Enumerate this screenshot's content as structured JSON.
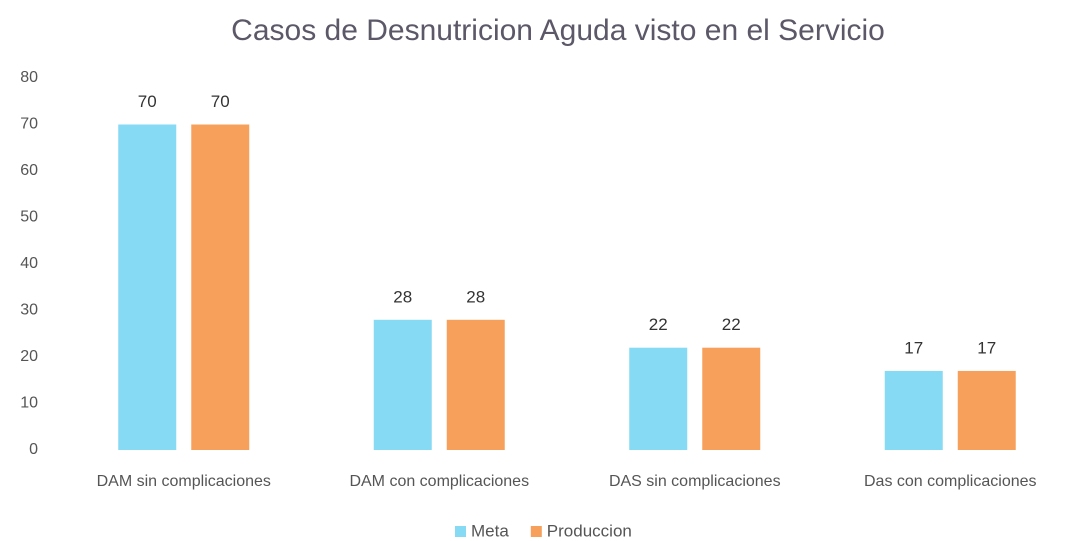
{
  "chart_data": {
    "type": "bar",
    "title": "Casos de Desnutricion Aguda visto en el Servicio",
    "categories": [
      "DAM sin complicaciones",
      "DAM con complicaciones",
      "DAS sin complicaciones",
      "Das con complicaciones"
    ],
    "series": [
      {
        "name": "Meta",
        "color": "#86daf3",
        "values": [
          70,
          28,
          22,
          17
        ]
      },
      {
        "name": "Produccion",
        "color": "#f7a05c",
        "values": [
          70,
          28,
          22,
          17
        ]
      }
    ],
    "ylim": [
      0,
      80
    ],
    "yticks": [
      0,
      10,
      20,
      30,
      40,
      50,
      60,
      70,
      80
    ],
    "grid": false,
    "legend": "bottom"
  }
}
